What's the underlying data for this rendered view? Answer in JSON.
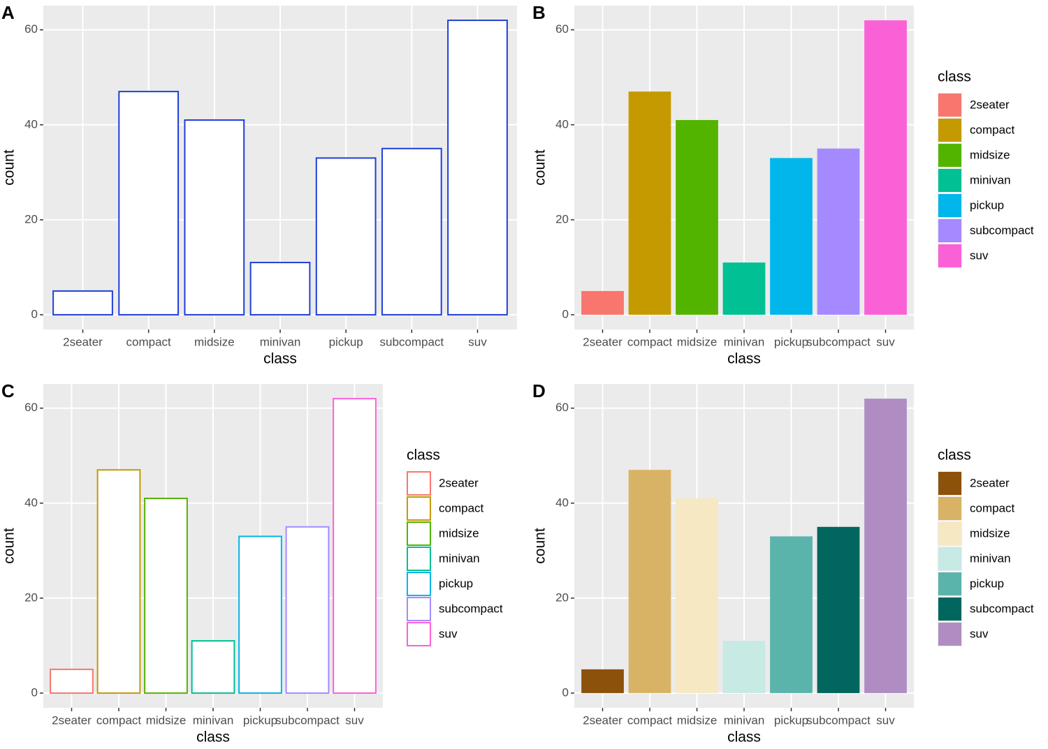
{
  "chart_data": [
    {
      "type": "bar",
      "tag": "A",
      "bar_style": "outline",
      "color": "#1f3fd8",
      "xlabel": "class",
      "ylabel": "count",
      "categories": [
        "2seater",
        "compact",
        "midsize",
        "minivan",
        "pickup",
        "subcompact",
        "suv"
      ],
      "values": [
        5,
        47,
        41,
        11,
        33,
        35,
        62
      ],
      "ylim": [
        -3.1,
        65.1
      ],
      "yticks": [
        0,
        20,
        40,
        60
      ],
      "grid": true
    },
    {
      "type": "bar",
      "tag": "B",
      "bar_style": "fill",
      "colors": [
        "#F8766D",
        "#C49A00",
        "#53B400",
        "#00C094",
        "#00B6EB",
        "#A58AFF",
        "#FB61D7"
      ],
      "xlabel": "class",
      "ylabel": "count",
      "legend_title": "class",
      "categories": [
        "2seater",
        "compact",
        "midsize",
        "minivan",
        "pickup",
        "subcompact",
        "suv"
      ],
      "values": [
        5,
        47,
        41,
        11,
        33,
        35,
        62
      ],
      "ylim": [
        -3.1,
        65.1
      ],
      "yticks": [
        0,
        20,
        40,
        60
      ],
      "grid": true
    },
    {
      "type": "bar",
      "tag": "C",
      "bar_style": "outline",
      "colors": [
        "#F8766D",
        "#C49A00",
        "#53B400",
        "#00C094",
        "#00B6EB",
        "#A58AFF",
        "#FB61D7"
      ],
      "xlabel": "class",
      "ylabel": "count",
      "legend_title": "class",
      "categories": [
        "2seater",
        "compact",
        "midsize",
        "minivan",
        "pickup",
        "subcompact",
        "suv"
      ],
      "values": [
        5,
        47,
        41,
        11,
        33,
        35,
        62
      ],
      "ylim": [
        -3.1,
        65.1
      ],
      "yticks": [
        0,
        20,
        40,
        60
      ],
      "grid": true
    },
    {
      "type": "bar",
      "tag": "D",
      "bar_style": "fill",
      "colors": [
        "#8C510A",
        "#D8B365",
        "#F6E8C3",
        "#C7EAE5",
        "#5AB4AC",
        "#01665E",
        "#AF8DC3"
      ],
      "xlabel": "class",
      "ylabel": "count",
      "legend_title": "class",
      "categories": [
        "2seater",
        "compact",
        "midsize",
        "minivan",
        "pickup",
        "subcompact",
        "suv"
      ],
      "values": [
        5,
        47,
        41,
        11,
        33,
        35,
        62
      ],
      "ylim": [
        -3.1,
        65.1
      ],
      "yticks": [
        0,
        20,
        40,
        60
      ],
      "grid": true
    }
  ]
}
